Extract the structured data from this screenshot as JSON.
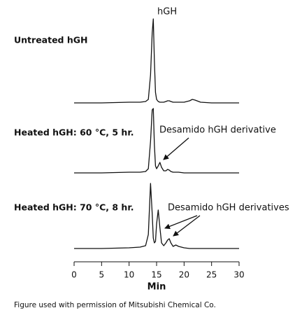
{
  "chart_data": {
    "type": "line",
    "x_label": "Min",
    "xlim": [
      0,
      30
    ],
    "xticks": [
      0,
      5,
      10,
      15,
      20,
      25,
      30
    ],
    "ylim": [
      0,
      120
    ],
    "x": [
      0,
      5,
      10,
      12,
      13,
      13.5,
      13.9,
      14.2,
      14.4,
      14.6,
      14.8,
      15,
      15.3,
      15.6,
      15.9,
      16.3,
      16.7,
      17,
      17.3,
      17.6,
      18,
      18.5,
      19,
      20,
      21,
      21.5,
      22,
      23,
      25,
      30
    ],
    "series": [
      {
        "name": "Untreated hGH",
        "color": "#111111",
        "values": [
          0,
          0,
          1,
          1,
          2,
          5,
          40,
          100,
          120,
          60,
          15,
          5,
          2,
          1,
          1,
          1,
          2,
          3,
          3,
          2,
          1,
          1,
          1,
          1,
          3,
          5,
          4,
          1,
          0,
          0
        ]
      },
      {
        "name": "Heated hGH: 60 °C, 5 hr.",
        "color": "#111111",
        "values": [
          0,
          0,
          1,
          1,
          2,
          6,
          45,
          90,
          92,
          40,
          10,
          6,
          10,
          15,
          8,
          3,
          3,
          5,
          4,
          2,
          1,
          1,
          1,
          0,
          0,
          0,
          0,
          0,
          0,
          0
        ]
      },
      {
        "name": "Heated hGH: 70 °C, 8 hr.",
        "color": "#111111",
        "values": [
          0,
          0,
          1,
          2,
          4,
          20,
          93,
          50,
          15,
          8,
          10,
          35,
          55,
          30,
          8,
          4,
          8,
          12,
          14,
          8,
          3,
          5,
          3,
          1,
          0,
          0,
          0,
          0,
          0,
          0
        ]
      }
    ],
    "annotations": [
      "hGH",
      "Desamido hGH derivative",
      "Desamido hGH derivatives"
    ],
    "caption": "Figure used with permission of Mitsubishi Chemical Co."
  }
}
